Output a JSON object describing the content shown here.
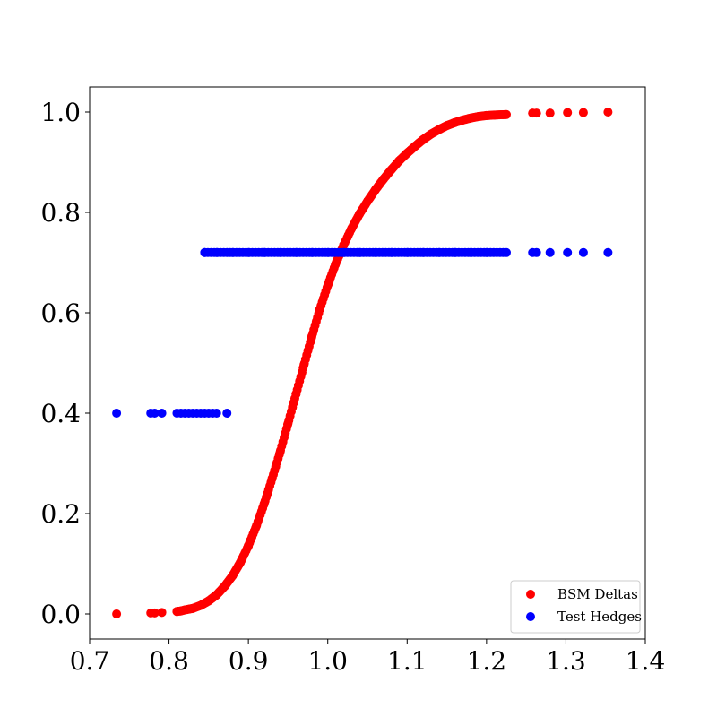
{
  "chart_data": {
    "type": "scatter",
    "title": "",
    "xlabel": "",
    "ylabel": "",
    "xlim": [
      0.7,
      1.4
    ],
    "ylim": [
      -0.05,
      1.05
    ],
    "xticks": [
      0.7,
      0.8,
      0.9,
      1.0,
      1.1,
      1.2,
      1.3,
      1.4
    ],
    "xtick_labels": [
      "0.7",
      "0.8",
      "0.9",
      "1.0",
      "1.1",
      "1.2",
      "1.3",
      "1.4"
    ],
    "yticks": [
      0.0,
      0.2,
      0.4,
      0.6,
      0.8,
      1.0
    ],
    "ytick_labels": [
      "0.0",
      "0.2",
      "0.4",
      "0.6",
      "0.8",
      "1.0"
    ],
    "grid": false,
    "legend": "lower-right",
    "series": [
      {
        "name": "BSM Deltas",
        "color": "#ff0000",
        "points": [
          [
            0.734,
            0.0
          ],
          [
            0.777,
            0.002
          ],
          [
            0.782,
            0.002
          ],
          [
            0.791,
            0.003
          ],
          [
            0.81,
            0.005
          ],
          [
            0.815,
            0.006
          ],
          [
            0.82,
            0.008
          ],
          [
            0.83,
            0.011
          ],
          [
            0.84,
            0.017
          ],
          [
            0.85,
            0.026
          ],
          [
            0.86,
            0.038
          ],
          [
            0.87,
            0.055
          ],
          [
            0.88,
            0.076
          ],
          [
            0.89,
            0.103
          ],
          [
            0.9,
            0.136
          ],
          [
            0.91,
            0.175
          ],
          [
            0.92,
            0.22
          ],
          [
            0.93,
            0.27
          ],
          [
            0.94,
            0.323
          ],
          [
            0.95,
            0.38
          ],
          [
            0.96,
            0.438
          ],
          [
            0.97,
            0.496
          ],
          [
            0.98,
            0.553
          ],
          [
            0.99,
            0.607
          ],
          [
            1.0,
            0.655
          ],
          [
            1.01,
            0.698
          ],
          [
            1.02,
            0.735
          ],
          [
            1.03,
            0.768
          ],
          [
            1.04,
            0.797
          ],
          [
            1.05,
            0.822
          ],
          [
            1.06,
            0.845
          ],
          [
            1.07,
            0.866
          ],
          [
            1.08,
            0.885
          ],
          [
            1.09,
            0.903
          ],
          [
            1.1,
            0.918
          ],
          [
            1.11,
            0.932
          ],
          [
            1.12,
            0.945
          ],
          [
            1.13,
            0.956
          ],
          [
            1.14,
            0.965
          ],
          [
            1.15,
            0.973
          ],
          [
            1.16,
            0.979
          ],
          [
            1.17,
            0.984
          ],
          [
            1.18,
            0.988
          ],
          [
            1.19,
            0.991
          ],
          [
            1.2,
            0.993
          ],
          [
            1.21,
            0.994
          ],
          [
            1.225,
            0.995
          ],
          [
            1.258,
            0.998
          ],
          [
            1.263,
            0.998
          ],
          [
            1.28,
            0.998
          ],
          [
            1.302,
            0.999
          ],
          [
            1.322,
            0.999
          ],
          [
            1.353,
            1.0
          ]
        ]
      },
      {
        "name": "Test Hedges",
        "color": "#0000ff",
        "points": [
          [
            0.734,
            0.4
          ],
          [
            0.777,
            0.4
          ],
          [
            0.782,
            0.4
          ],
          [
            0.791,
            0.4
          ],
          [
            0.81,
            0.4
          ],
          [
            0.815,
            0.4
          ],
          [
            0.82,
            0.4
          ],
          [
            0.825,
            0.4
          ],
          [
            0.83,
            0.4
          ],
          [
            0.835,
            0.4
          ],
          [
            0.84,
            0.4
          ],
          [
            0.845,
            0.4
          ],
          [
            0.85,
            0.4
          ],
          [
            0.855,
            0.4
          ],
          [
            0.86,
            0.4
          ],
          [
            0.873,
            0.4
          ],
          [
            0.845,
            0.72
          ],
          [
            0.86,
            0.72
          ],
          [
            0.88,
            0.72
          ],
          [
            0.9,
            0.72
          ],
          [
            0.92,
            0.72
          ],
          [
            0.94,
            0.72
          ],
          [
            0.96,
            0.72
          ],
          [
            0.98,
            0.72
          ],
          [
            1.0,
            0.72
          ],
          [
            1.02,
            0.72
          ],
          [
            1.04,
            0.72
          ],
          [
            1.06,
            0.72
          ],
          [
            1.08,
            0.72
          ],
          [
            1.1,
            0.72
          ],
          [
            1.12,
            0.72
          ],
          [
            1.14,
            0.72
          ],
          [
            1.16,
            0.72
          ],
          [
            1.18,
            0.72
          ],
          [
            1.2,
            0.72
          ],
          [
            1.225,
            0.72
          ],
          [
            1.258,
            0.72
          ],
          [
            1.263,
            0.72
          ],
          [
            1.28,
            0.72
          ],
          [
            1.302,
            0.72
          ],
          [
            1.322,
            0.72
          ],
          [
            1.353,
            0.72
          ]
        ]
      }
    ]
  }
}
